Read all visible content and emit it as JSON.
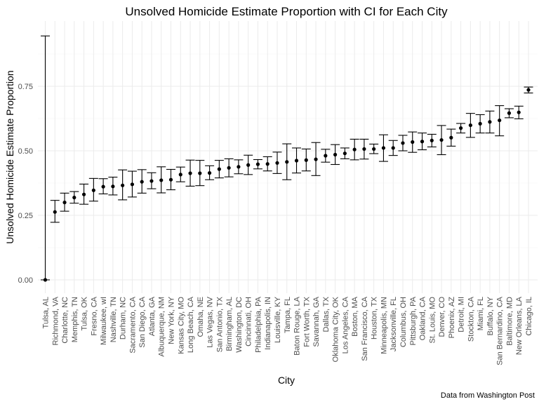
{
  "chart_data": {
    "type": "scatter",
    "title": "Unsolved Homicide Estimate Proportion with CI for Each City",
    "xlabel": "City",
    "ylabel": "Unsolved Homicide Estimate Proportion",
    "caption": "Data from Washington Post",
    "ylim": [
      -0.02,
      0.965
    ],
    "yticks": [
      0.0,
      0.25,
      0.5,
      0.75
    ],
    "ytick_labels": [
      "0.00",
      "0.25",
      "0.50",
      "0.75"
    ],
    "grid": true,
    "points": [
      {
        "city": "Tulsa, AL",
        "estimate": 0.0,
        "lower": 0.0,
        "upper": 0.945
      },
      {
        "city": "Richmond, VA",
        "estimate": 0.263,
        "lower": 0.223,
        "upper": 0.308
      },
      {
        "city": "Charlotte, NC",
        "estimate": 0.3,
        "lower": 0.266,
        "upper": 0.336
      },
      {
        "city": "Memphis, TN",
        "estimate": 0.319,
        "lower": 0.297,
        "upper": 0.342
      },
      {
        "city": "Tulsa, OK",
        "estimate": 0.331,
        "lower": 0.293,
        "upper": 0.371
      },
      {
        "city": "Fresno, CA",
        "estimate": 0.347,
        "lower": 0.305,
        "upper": 0.393
      },
      {
        "city": "Milwaukee, wI",
        "estimate": 0.361,
        "lower": 0.333,
        "upper": 0.392
      },
      {
        "city": "Nashville, TN",
        "estimate": 0.362,
        "lower": 0.329,
        "upper": 0.398
      },
      {
        "city": "Durham, NC",
        "estimate": 0.366,
        "lower": 0.31,
        "upper": 0.426
      },
      {
        "city": "Sacramento, CA",
        "estimate": 0.37,
        "lower": 0.321,
        "upper": 0.421
      },
      {
        "city": "San Diego, CA",
        "estimate": 0.38,
        "lower": 0.336,
        "upper": 0.427
      },
      {
        "city": "Atlanta, GA",
        "estimate": 0.383,
        "lower": 0.353,
        "upper": 0.415
      },
      {
        "city": "Albuquerque, NM",
        "estimate": 0.386,
        "lower": 0.337,
        "upper": 0.438
      },
      {
        "city": "New York, NY",
        "estimate": 0.388,
        "lower": 0.349,
        "upper": 0.428
      },
      {
        "city": "Kansas City, MO",
        "estimate": 0.408,
        "lower": 0.38,
        "upper": 0.437
      },
      {
        "city": "Long Beach, CA",
        "estimate": 0.413,
        "lower": 0.363,
        "upper": 0.464
      },
      {
        "city": "Omaha, NE",
        "estimate": 0.413,
        "lower": 0.365,
        "upper": 0.463
      },
      {
        "city": "Las Vegas, NV",
        "estimate": 0.414,
        "lower": 0.388,
        "upper": 0.442
      },
      {
        "city": "San Antonio, TX",
        "estimate": 0.429,
        "lower": 0.395,
        "upper": 0.463
      },
      {
        "city": "Birmingham, AL",
        "estimate": 0.434,
        "lower": 0.399,
        "upper": 0.469
      },
      {
        "city": "Washington, DC",
        "estimate": 0.438,
        "lower": 0.411,
        "upper": 0.465
      },
      {
        "city": "Cincinnati, OH",
        "estimate": 0.445,
        "lower": 0.408,
        "upper": 0.483
      },
      {
        "city": "Philadelphia, PA",
        "estimate": 0.448,
        "lower": 0.43,
        "upper": 0.466
      },
      {
        "city": "Indianapolis, IN",
        "estimate": 0.449,
        "lower": 0.422,
        "upper": 0.477
      },
      {
        "city": "Louisville, KY",
        "estimate": 0.453,
        "lower": 0.412,
        "upper": 0.495
      },
      {
        "city": "Tampa, FL",
        "estimate": 0.457,
        "lower": 0.388,
        "upper": 0.527
      },
      {
        "city": "Baton Rouge, LA",
        "estimate": 0.462,
        "lower": 0.414,
        "upper": 0.511
      },
      {
        "city": "Fort Worth, TX",
        "estimate": 0.464,
        "lower": 0.422,
        "upper": 0.507
      },
      {
        "city": "Savannah, GA",
        "estimate": 0.467,
        "lower": 0.404,
        "upper": 0.532
      },
      {
        "city": "Dallas, TX",
        "estimate": 0.481,
        "lower": 0.456,
        "upper": 0.506
      },
      {
        "city": "Oklahoma City, OK",
        "estimate": 0.485,
        "lower": 0.447,
        "upper": 0.524
      },
      {
        "city": "Los Angeles, CA",
        "estimate": 0.49,
        "lower": 0.469,
        "upper": 0.511
      },
      {
        "city": "Boston, MA",
        "estimate": 0.505,
        "lower": 0.465,
        "upper": 0.545
      },
      {
        "city": "San Francisco, CA",
        "estimate": 0.507,
        "lower": 0.468,
        "upper": 0.545
      },
      {
        "city": "Houston, TX",
        "estimate": 0.507,
        "lower": 0.489,
        "upper": 0.526
      },
      {
        "city": "Minneapolis, MN",
        "estimate": 0.511,
        "lower": 0.459,
        "upper": 0.562
      },
      {
        "city": "Jacksonville, FL",
        "estimate": 0.511,
        "lower": 0.482,
        "upper": 0.54
      },
      {
        "city": "Columbus, OH",
        "estimate": 0.53,
        "lower": 0.5,
        "upper": 0.56
      },
      {
        "city": "Pittsburgh, PA",
        "estimate": 0.534,
        "lower": 0.494,
        "upper": 0.573
      },
      {
        "city": "Oakland, CA",
        "estimate": 0.536,
        "lower": 0.504,
        "upper": 0.569
      },
      {
        "city": "St. Louis, MO",
        "estimate": 0.54,
        "lower": 0.515,
        "upper": 0.564
      },
      {
        "city": "Denver, CO",
        "estimate": 0.542,
        "lower": 0.485,
        "upper": 0.598
      },
      {
        "city": "Phoenix, AZ",
        "estimate": 0.551,
        "lower": 0.518,
        "upper": 0.584
      },
      {
        "city": "Detroit, MI",
        "estimate": 0.588,
        "lower": 0.569,
        "upper": 0.606
      },
      {
        "city": "Stockton, CA",
        "estimate": 0.599,
        "lower": 0.552,
        "upper": 0.645
      },
      {
        "city": "Miami, FL",
        "estimate": 0.605,
        "lower": 0.569,
        "upper": 0.64
      },
      {
        "city": "Buffalo, NY",
        "estimate": 0.612,
        "lower": 0.569,
        "upper": 0.654
      },
      {
        "city": "San Bernardino, CA",
        "estimate": 0.618,
        "lower": 0.558,
        "upper": 0.675
      },
      {
        "city": "Baltimore, MD",
        "estimate": 0.646,
        "lower": 0.628,
        "upper": 0.663
      },
      {
        "city": "New Orleans, LA",
        "estimate": 0.649,
        "lower": 0.624,
        "upper": 0.673
      },
      {
        "city": "Chicago, IL",
        "estimate": 0.736,
        "lower": 0.724,
        "upper": 0.747
      }
    ]
  }
}
